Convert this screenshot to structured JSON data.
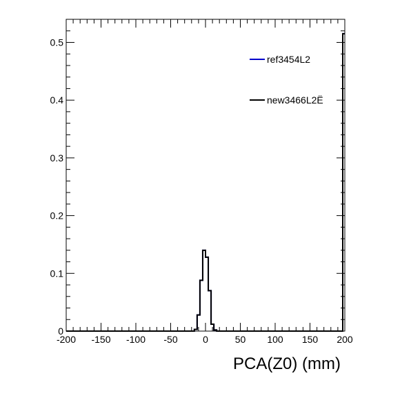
{
  "chart_data": {
    "type": "histogram",
    "title": "",
    "xlabel": "PCA(Z0) (mm)",
    "ylabel": "",
    "xlim": [
      -200,
      200
    ],
    "ylim": [
      0,
      0.54
    ],
    "x_ticks": [
      -200,
      -150,
      -100,
      -50,
      0,
      50,
      100,
      150,
      200
    ],
    "x_tick_labels": [
      "-200",
      "-150",
      "-100",
      "-50",
      "0",
      "50",
      "100",
      "150",
      "200"
    ],
    "y_ticks": [
      0,
      0.1,
      0.2,
      0.3,
      0.4,
      0.5
    ],
    "y_tick_labels": [
      "0",
      "0.1",
      "0.2",
      "0.3",
      "0.4",
      "0.5"
    ],
    "grid": false,
    "legend_position": "top-right",
    "bin_edges": [
      -20,
      -16,
      -12,
      -8,
      -4,
      0,
      4,
      8,
      12,
      16,
      20
    ],
    "series": [
      {
        "name": "ref3454L2",
        "color": "#0000cc",
        "values": [
          0,
          0.003,
          0.028,
          0.088,
          0.14,
          0.128,
          0.07,
          0.012,
          0.002,
          0
        ],
        "overflow_bin_value": 0.515
      },
      {
        "name": "new3466L2Ë",
        "color": "#000000",
        "values": [
          0,
          0.003,
          0.028,
          0.088,
          0.14,
          0.128,
          0.07,
          0.012,
          0.002,
          0
        ],
        "overflow_bin_value": 0.515
      }
    ]
  }
}
